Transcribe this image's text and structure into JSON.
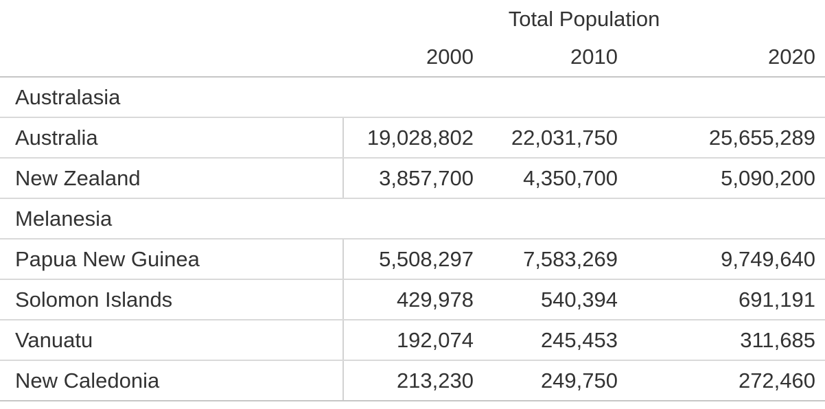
{
  "table": {
    "title": "Total Population",
    "years": [
      "2000",
      "2010",
      "2020"
    ],
    "groups": [
      {
        "name": "Australasia",
        "rows": [
          {
            "country": "Australia",
            "values": [
              "19,028,802",
              "22,031,750",
              "25,655,289"
            ]
          },
          {
            "country": "New Zealand",
            "values": [
              "3,857,700",
              "4,350,700",
              "5,090,200"
            ]
          }
        ]
      },
      {
        "name": "Melanesia",
        "rows": [
          {
            "country": "Papua New Guinea",
            "values": [
              "5,508,297",
              "7,583,269",
              "9,749,640"
            ]
          },
          {
            "country": "Solomon Islands",
            "values": [
              "429,978",
              "540,394",
              "691,191"
            ]
          },
          {
            "country": "Vanuatu",
            "values": [
              "192,074",
              "245,453",
              "311,685"
            ]
          },
          {
            "country": "New Caledonia",
            "values": [
              "213,230",
              "249,750",
              "272,460"
            ]
          }
        ]
      }
    ],
    "colors": {
      "background": "#ffffff",
      "text": "#333333",
      "header_border": "#c6c6c6",
      "row_border": "#d9d9d9",
      "column_divider": "#d2d2d2"
    }
  },
  "chart_data": {
    "type": "table",
    "title": "Total Population",
    "categories": [
      "2000",
      "2010",
      "2020"
    ],
    "groups": [
      {
        "name": "Australasia",
        "rows": [
          {
            "label": "Australia",
            "values": [
              19028802,
              22031750,
              25655289
            ]
          },
          {
            "label": "New Zealand",
            "values": [
              3857700,
              4350700,
              5090200
            ]
          }
        ]
      },
      {
        "name": "Melanesia",
        "rows": [
          {
            "label": "Papua New Guinea",
            "values": [
              5508297,
              7583269,
              9749640
            ]
          },
          {
            "label": "Solomon Islands",
            "values": [
              429978,
              540394,
              691191
            ]
          },
          {
            "label": "Vanuatu",
            "values": [
              192074,
              245453,
              311685
            ]
          },
          {
            "label": "New Caledonia",
            "values": [
              213230,
              249750,
              272460
            ]
          }
        ]
      }
    ],
    "layout": {
      "grouped_rows": true,
      "value_alignment": "right",
      "column_divider_after_first_column": true
    }
  }
}
